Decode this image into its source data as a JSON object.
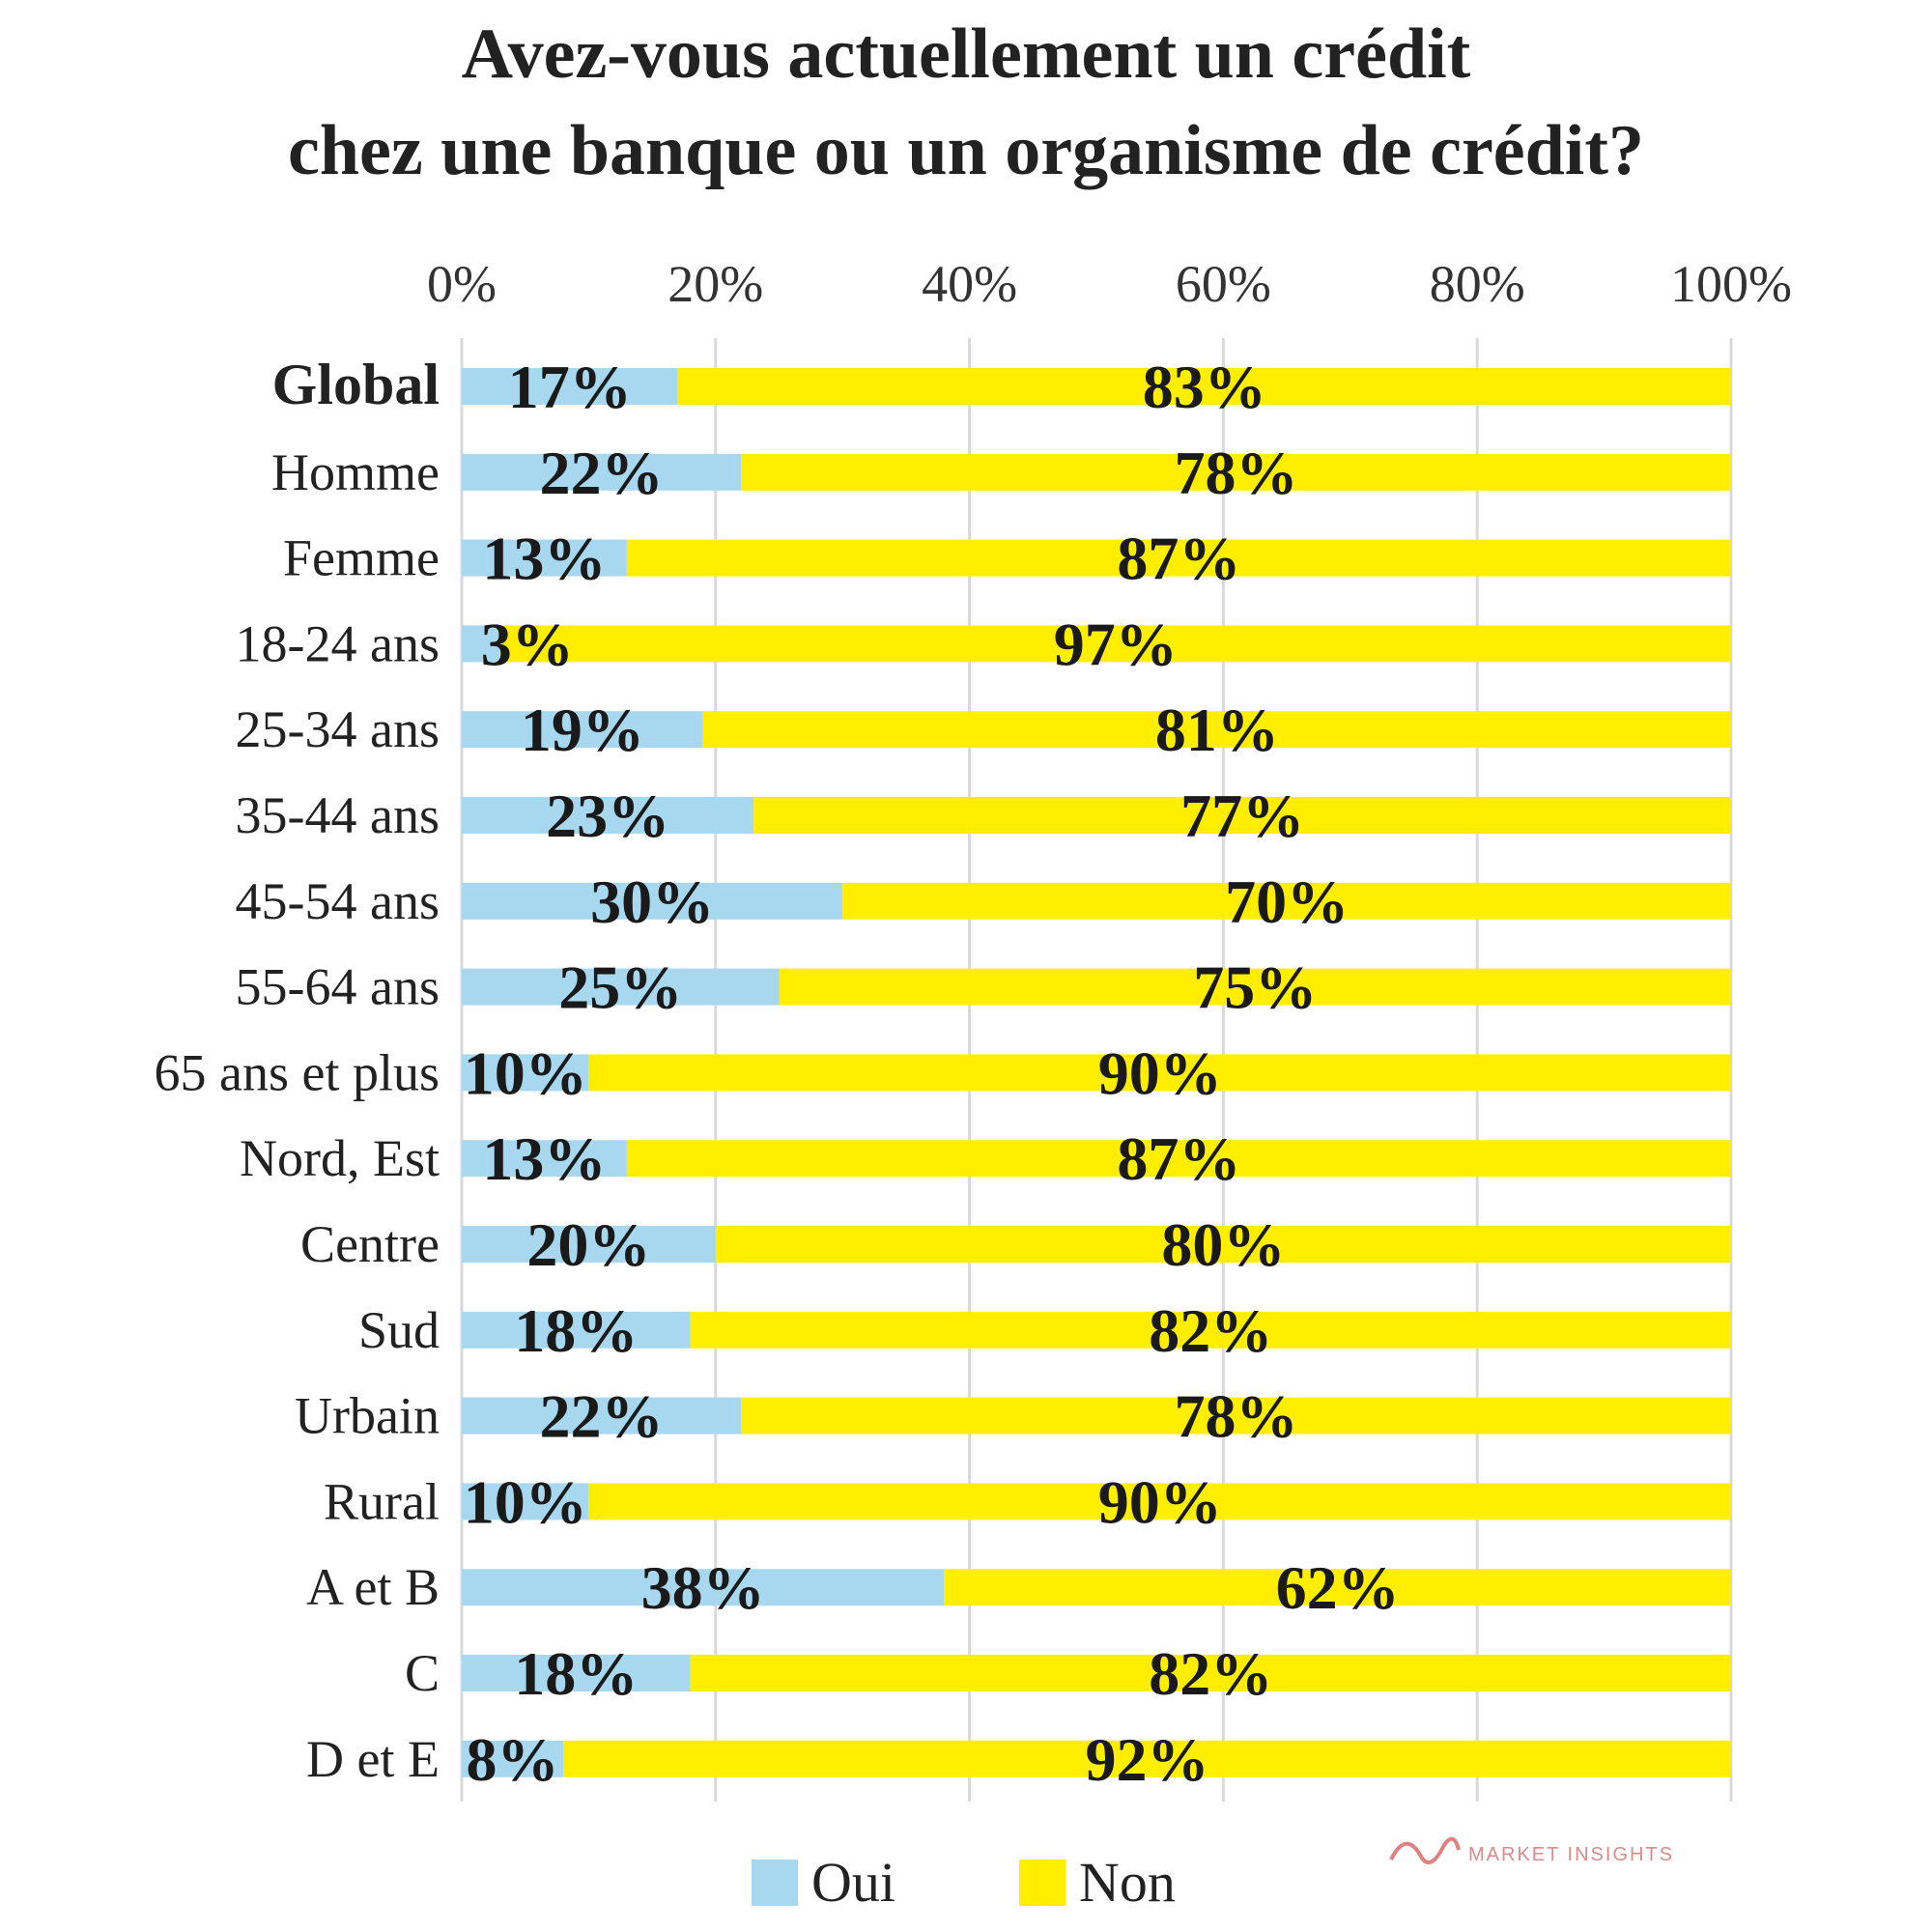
{
  "chart_data": {
    "type": "bar",
    "orientation": "horizontal",
    "stacked": true,
    "title": "Avez-vous actuellement un crédit chez une banque ou un organisme de crédit?",
    "title_lines": [
      "Avez-vous actuellement un crédit",
      "chez une banque ou un organisme de crédit?"
    ],
    "x_ticks": [
      "0%",
      "20%",
      "40%",
      "60%",
      "80%",
      "100%"
    ],
    "xlim": [
      0,
      100
    ],
    "grid": true,
    "legend_position": "bottom",
    "categories": [
      "Global",
      "Homme",
      "Femme",
      "18-24 ans",
      "25-34 ans",
      "35-44 ans",
      "45-54 ans",
      "55-64 ans",
      "65 ans et plus",
      "Nord, Est",
      "Centre",
      "Sud",
      "Urbain",
      "Rural",
      "A et B",
      "C",
      "D et E"
    ],
    "series": [
      {
        "name": "Oui",
        "color": "#a8d8f0",
        "values": [
          17,
          22,
          13,
          3,
          19,
          23,
          30,
          25,
          10,
          13,
          20,
          18,
          22,
          10,
          38,
          18,
          8
        ],
        "labels": [
          "17%",
          "22%",
          "13%",
          "3%",
          "19%",
          "23%",
          "30%",
          "25%",
          "10%",
          "13%",
          "20%",
          "18%",
          "22%",
          "10%",
          "38%",
          "18%",
          "8%"
        ]
      },
      {
        "name": "Non",
        "color": "#ffee00",
        "values": [
          83,
          78,
          87,
          97,
          81,
          77,
          70,
          75,
          90,
          87,
          80,
          82,
          78,
          90,
          62,
          82,
          92
        ],
        "labels": [
          "83%",
          "78%",
          "87%",
          "97%",
          "81%",
          "77%",
          "70%",
          "75%",
          "90%",
          "87%",
          "80%",
          "82%",
          "78%",
          "90%",
          "62%",
          "82%",
          "92%"
        ]
      }
    ]
  },
  "watermark": "MARKET INSIGHTS"
}
